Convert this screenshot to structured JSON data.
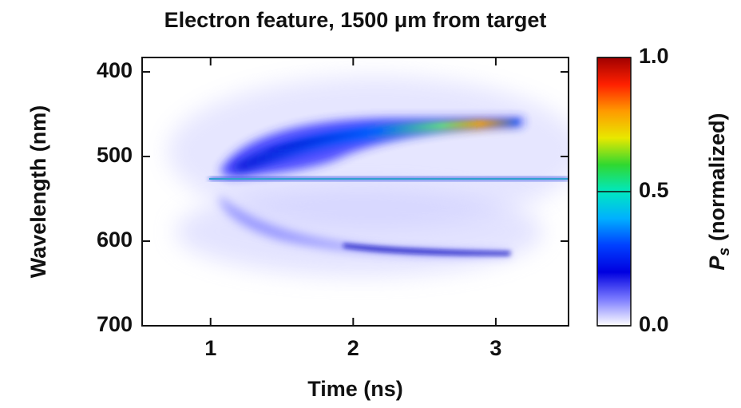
{
  "chart_data": {
    "type": "heatmap",
    "title": "Electron feature, 1500 μm from target",
    "xlabel": "Time (ns)",
    "ylabel": "Wavelength (nm)",
    "xlim": [
      0.52,
      3.51
    ],
    "xticks": [
      1,
      2,
      3
    ],
    "ylim": [
      700,
      383
    ],
    "yticks": [
      400,
      500,
      600,
      700
    ],
    "colorbar": {
      "label": {
        "symbol": "P",
        "subscript": "s",
        "text": "(normalized)"
      },
      "lim": [
        0,
        1
      ],
      "ticks": [
        {
          "value": 0,
          "label": "0.0"
        },
        {
          "value": 0.5,
          "label": "0.5"
        },
        {
          "value": 1,
          "label": "1.0"
        }
      ],
      "colors": [
        "#ffffff",
        "#7a7aff",
        "#0000e0",
        "#0040ff",
        "#00b0ff",
        "#00e8c0",
        "#30d830",
        "#e8e800",
        "#ff9a00",
        "#ff2000",
        "#a00000"
      ]
    }
  }
}
